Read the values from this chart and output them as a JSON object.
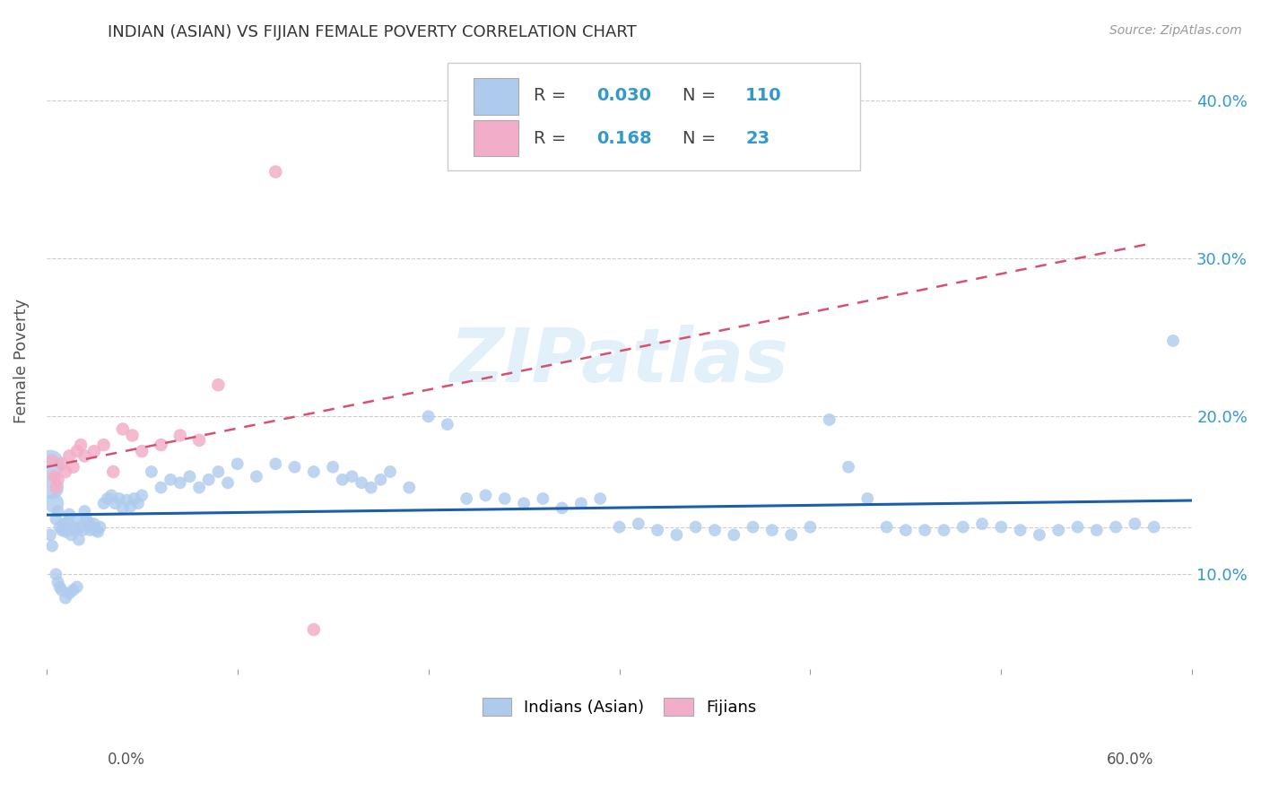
{
  "title": "INDIAN (ASIAN) VS FIJIAN FEMALE POVERTY CORRELATION CHART",
  "source": "Source: ZipAtlas.com",
  "ylabel": "Female Poverty",
  "yticks": [
    0.1,
    0.2,
    0.3,
    0.4
  ],
  "ytick_labels": [
    "10.0%",
    "20.0%",
    "30.0%",
    "40.0%"
  ],
  "xmin": 0.0,
  "xmax": 0.6,
  "ymin": 0.04,
  "ymax": 0.43,
  "indian_color": "#aecbee",
  "fijian_color": "#f2aec8",
  "indian_trend_color": "#1a5fa8",
  "fijian_trend_color": "#d85070",
  "indian_R": 0.03,
  "indian_N": 110,
  "fijian_R": 0.168,
  "fijian_N": 23,
  "watermark": "ZIPatlas",
  "background_color": "#ffffff",
  "grid_color": "#cccccc",
  "stats_box_color": "#3399cc",
  "legend_label_indian": "Indians (Asian)",
  "legend_label_fijian": "Fijians",
  "indian_x": [
    0.002,
    0.003,
    0.004,
    0.005,
    0.006,
    0.007,
    0.008,
    0.009,
    0.01,
    0.011,
    0.012,
    0.013,
    0.014,
    0.015,
    0.016,
    0.017,
    0.018,
    0.019,
    0.02,
    0.021,
    0.022,
    0.023,
    0.024,
    0.025,
    0.026,
    0.027,
    0.028,
    0.03,
    0.032,
    0.034,
    0.036,
    0.038,
    0.04,
    0.042,
    0.044,
    0.046,
    0.048,
    0.05,
    0.055,
    0.06,
    0.065,
    0.07,
    0.075,
    0.08,
    0.085,
    0.09,
    0.095,
    0.1,
    0.11,
    0.12,
    0.13,
    0.14,
    0.15,
    0.155,
    0.16,
    0.165,
    0.17,
    0.175,
    0.18,
    0.19,
    0.2,
    0.21,
    0.22,
    0.23,
    0.24,
    0.25,
    0.26,
    0.27,
    0.28,
    0.29,
    0.3,
    0.31,
    0.32,
    0.33,
    0.34,
    0.35,
    0.36,
    0.37,
    0.38,
    0.39,
    0.4,
    0.41,
    0.42,
    0.43,
    0.44,
    0.45,
    0.46,
    0.47,
    0.48,
    0.49,
    0.5,
    0.51,
    0.52,
    0.53,
    0.54,
    0.55,
    0.56,
    0.57,
    0.58,
    0.59,
    0.002,
    0.003,
    0.005,
    0.006,
    0.007,
    0.008,
    0.01,
    0.012,
    0.014,
    0.016
  ],
  "indian_y": [
    0.17,
    0.155,
    0.145,
    0.135,
    0.14,
    0.13,
    0.128,
    0.132,
    0.127,
    0.133,
    0.138,
    0.125,
    0.13,
    0.128,
    0.135,
    0.122,
    0.13,
    0.128,
    0.14,
    0.135,
    0.133,
    0.128,
    0.13,
    0.132,
    0.128,
    0.127,
    0.13,
    0.145,
    0.148,
    0.15,
    0.145,
    0.148,
    0.142,
    0.147,
    0.143,
    0.148,
    0.145,
    0.15,
    0.165,
    0.155,
    0.16,
    0.158,
    0.162,
    0.155,
    0.16,
    0.165,
    0.158,
    0.17,
    0.162,
    0.17,
    0.168,
    0.165,
    0.168,
    0.16,
    0.162,
    0.158,
    0.155,
    0.16,
    0.165,
    0.155,
    0.2,
    0.195,
    0.148,
    0.15,
    0.148,
    0.145,
    0.148,
    0.142,
    0.145,
    0.148,
    0.13,
    0.132,
    0.128,
    0.125,
    0.13,
    0.128,
    0.125,
    0.13,
    0.128,
    0.125,
    0.13,
    0.198,
    0.168,
    0.148,
    0.13,
    0.128,
    0.128,
    0.128,
    0.13,
    0.132,
    0.13,
    0.128,
    0.125,
    0.128,
    0.13,
    0.128,
    0.13,
    0.132,
    0.13,
    0.248,
    0.125,
    0.118,
    0.1,
    0.095,
    0.092,
    0.09,
    0.085,
    0.088,
    0.09,
    0.092
  ],
  "fijian_x": [
    0.003,
    0.004,
    0.005,
    0.006,
    0.008,
    0.01,
    0.012,
    0.014,
    0.016,
    0.018,
    0.02,
    0.025,
    0.03,
    0.035,
    0.04,
    0.045,
    0.05,
    0.06,
    0.07,
    0.08,
    0.09,
    0.12,
    0.14
  ],
  "fijian_y": [
    0.172,
    0.162,
    0.155,
    0.16,
    0.17,
    0.165,
    0.175,
    0.168,
    0.178,
    0.182,
    0.175,
    0.178,
    0.182,
    0.165,
    0.192,
    0.188,
    0.178,
    0.182,
    0.188,
    0.185,
    0.22,
    0.355,
    0.065
  ]
}
